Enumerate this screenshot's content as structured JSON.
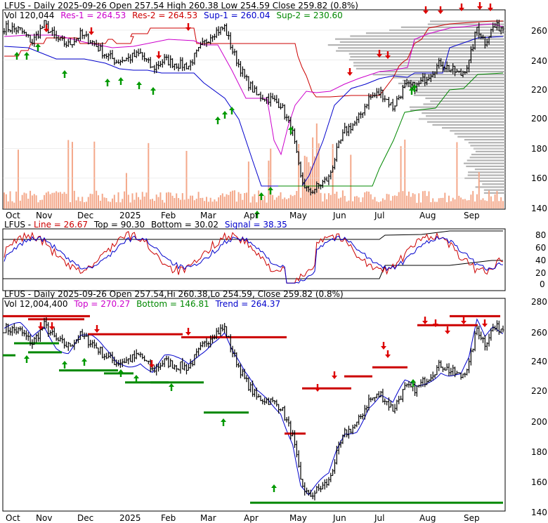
{
  "colors": {
    "black": "#000000",
    "red": "#cc0000",
    "blue": "#0000cc",
    "green": "#008800",
    "magenta": "#cc00cc",
    "volume": "#f4a88a",
    "profile": "#b4b4b4",
    "arrow_up": "#009900",
    "arrow_down": "#dd0000",
    "grid": "#dddddd"
  },
  "x_months": [
    "Oct",
    "Nov",
    "Dec",
    "2025",
    "Feb",
    "Mar",
    "Apr",
    "May",
    "Jun",
    "Jul",
    "Aug",
    "Sep"
  ],
  "panel1": {
    "header": {
      "title": "LFUS - Daily 2025-09-26 Open 257.54  High 260.38  Low 254.59  Close 259.82 (0.8%)",
      "vol_label": "Vol 120,044",
      "res1": "Res-1 = 264.53",
      "res2": "Res-2 = 264.53",
      "sup1": "Sup-1 = 260.04",
      "sup2": "Sup-2 = 230.60"
    },
    "y_ticks": [
      "260",
      "240",
      "220",
      "200",
      "180",
      "160",
      "140"
    ]
  },
  "panel2": {
    "header": {
      "prefix": "LFUS - ",
      "line": "Line = 26.67",
      "top": "Top = 90.30",
      "bottom": "Bottom = 30.02",
      "signal": "Signal = 38.35"
    },
    "y_ticks": [
      "80",
      "60",
      "40",
      "20",
      "0"
    ]
  },
  "panel3": {
    "header": {
      "title": "LFUS - Daily 2025-09-26 Open 257.54,Hi 260.38,Lo 254.59, Close 259.82 (0.8%)",
      "vol": "Vol 12,004,400",
      "top": "Top = 270.27",
      "bottom": "Bottom = 146.81",
      "trend": "Trend = 264.37"
    },
    "y_ticks": [
      "280",
      "260",
      "240",
      "220",
      "200",
      "180",
      "160",
      "140"
    ]
  },
  "chart_data": [
    {
      "type": "candlestick",
      "title": "LFUS - Daily 2025-09-26 Open 257.54 High 260.38 Low 254.59 Close 259.82 (0.8%)",
      "x_labels": [
        "Oct",
        "Nov",
        "Dec",
        "2025",
        "Feb",
        "Mar",
        "Apr",
        "May",
        "Jun",
        "Jul",
        "Aug",
        "Sep"
      ],
      "ylim": [
        140,
        270
      ],
      "close_by_month": [
        262,
        252,
        244,
        234,
        258,
        222,
        155,
        205,
        218,
        234,
        250,
        262
      ],
      "series": [
        {
          "name": "Res-1",
          "last": 264.53
        },
        {
          "name": "Res-2",
          "last": 264.53
        },
        {
          "name": "Sup-1",
          "last": 260.04
        },
        {
          "name": "Sup-2",
          "last": 230.6
        }
      ],
      "volume_label": "Vol 120,044"
    },
    {
      "type": "line",
      "title": "LFUS - Line = 26.67, Top = 90.30, Bottom = 30.02, Signal = 38.35",
      "ylim": [
        0,
        90
      ],
      "series": [
        {
          "name": "Line",
          "last": 26.67
        },
        {
          "name": "Top",
          "last": 90.3
        },
        {
          "name": "Bottom",
          "last": 30.02
        },
        {
          "name": "Signal",
          "last": 38.35
        }
      ]
    },
    {
      "type": "candlestick",
      "title": "LFUS - Daily 2025-09-26 Open 257.54,Hi 260.38,Lo 254.59, Close 259.82 (0.8%)",
      "ylim": [
        140,
        285
      ],
      "series": [
        {
          "name": "Top",
          "last": 270.27
        },
        {
          "name": "Bottom",
          "last": 146.81
        },
        {
          "name": "Trend",
          "last": 264.37
        }
      ],
      "volume_label": "Vol 12,004,400"
    }
  ]
}
